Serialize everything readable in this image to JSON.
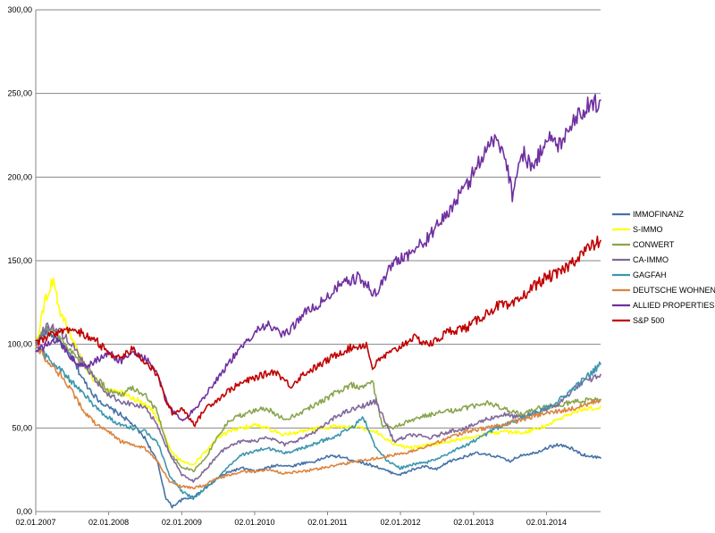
{
  "chart_data": {
    "type": "line",
    "title": "",
    "xlabel": "",
    "ylabel": "",
    "ylim": [
      0,
      300
    ],
    "xlim": [
      "2007-01-02",
      "2014-09-30"
    ],
    "grid": "horizontal",
    "legend_position": "right",
    "y_ticks": [
      "0,00",
      "50,00",
      "100,00",
      "150,00",
      "200,00",
      "250,00",
      "300,00"
    ],
    "x_ticks": [
      {
        "date": "2007-01-02",
        "label": "02.01.2007"
      },
      {
        "date": "2008-01-02",
        "label": "02.01.2008"
      },
      {
        "date": "2009-01-02",
        "label": "02.01.2009"
      },
      {
        "date": "2010-01-02",
        "label": "02.01.2010"
      },
      {
        "date": "2011-01-02",
        "label": "02.01.2011"
      },
      {
        "date": "2012-01-02",
        "label": "02.01.2012"
      },
      {
        "date": "2013-01-02",
        "label": "02.01.2013"
      },
      {
        "date": "2014-01-02",
        "label": "02.01.2014"
      }
    ],
    "series": [
      {
        "name": "IMMOFINANZ",
        "color": "#4572A7",
        "x": [
          "2007-01-02",
          "2007-03-01",
          "2007-05-01",
          "2007-07-01",
          "2007-09-01",
          "2007-11-01",
          "2008-01-02",
          "2008-03-01",
          "2008-05-01",
          "2008-07-01",
          "2008-09-01",
          "2008-10-15",
          "2008-11-15",
          "2009-01-02",
          "2009-03-01",
          "2009-05-01",
          "2009-07-01",
          "2009-09-01",
          "2009-11-01",
          "2010-01-02",
          "2010-03-01",
          "2010-05-01",
          "2010-07-01",
          "2010-09-01",
          "2010-11-01",
          "2011-01-02",
          "2011-03-01",
          "2011-05-01",
          "2011-07-01",
          "2011-09-01",
          "2011-11-01",
          "2012-01-02",
          "2012-03-01",
          "2012-05-01",
          "2012-07-01",
          "2012-09-01",
          "2012-11-01",
          "2013-01-02",
          "2013-03-01",
          "2013-05-01",
          "2013-07-01",
          "2013-09-01",
          "2013-11-01",
          "2014-01-02",
          "2014-03-01",
          "2014-05-01",
          "2014-07-01",
          "2014-09-30"
        ],
        "values": [
          100,
          108,
          102,
          92,
          78,
          68,
          62,
          58,
          52,
          44,
          30,
          8,
          3,
          7,
          9,
          14,
          20,
          24,
          26,
          24,
          26,
          28,
          27,
          29,
          30,
          33,
          33,
          31,
          29,
          27,
          24,
          22,
          25,
          27,
          25,
          30,
          32,
          35,
          34,
          33,
          30,
          34,
          35,
          38,
          40,
          38,
          34,
          32
        ]
      },
      {
        "name": "S-IMMO",
        "color": "#FFFF00",
        "x": [
          "2007-01-02",
          "2007-02-15",
          "2007-04-01",
          "2007-05-01",
          "2007-06-01",
          "2007-08-01",
          "2007-10-01",
          "2007-12-01",
          "2008-02-01",
          "2008-04-01",
          "2008-06-01",
          "2008-08-01",
          "2008-10-01",
          "2008-11-15",
          "2009-01-02",
          "2009-03-01",
          "2009-05-01",
          "2009-07-01",
          "2009-09-01",
          "2009-11-01",
          "2010-01-02",
          "2010-03-01",
          "2010-06-01",
          "2010-09-01",
          "2010-12-01",
          "2011-03-01",
          "2011-06-01",
          "2011-09-01",
          "2011-12-01",
          "2012-03-01",
          "2012-06-01",
          "2012-09-01",
          "2012-12-01",
          "2013-03-01",
          "2013-06-01",
          "2013-09-01",
          "2013-12-01",
          "2014-03-01",
          "2014-06-01",
          "2014-09-30"
        ],
        "values": [
          100,
          125,
          140,
          120,
          112,
          95,
          82,
          74,
          72,
          70,
          66,
          62,
          48,
          35,
          30,
          28,
          36,
          44,
          48,
          50,
          52,
          50,
          46,
          48,
          50,
          51,
          50,
          48,
          40,
          38,
          40,
          42,
          44,
          46,
          48,
          47,
          50,
          55,
          60,
          63
        ]
      },
      {
        "name": "CONWERT",
        "color": "#89A54E",
        "x": [
          "2007-01-02",
          "2007-03-01",
          "2007-05-01",
          "2007-07-01",
          "2007-09-01",
          "2007-11-01",
          "2008-01-02",
          "2008-03-01",
          "2008-05-01",
          "2008-07-01",
          "2008-09-01",
          "2008-11-01",
          "2009-01-02",
          "2009-03-01",
          "2009-05-01",
          "2009-07-01",
          "2009-09-01",
          "2009-11-01",
          "2010-01-02",
          "2010-03-01",
          "2010-06-01",
          "2010-09-01",
          "2010-12-01",
          "2011-03-01",
          "2011-05-01",
          "2011-07-01",
          "2011-08-15",
          "2011-10-01",
          "2011-12-01",
          "2012-03-01",
          "2012-06-01",
          "2012-09-01",
          "2012-12-01",
          "2013-03-01",
          "2013-06-01",
          "2013-09-01",
          "2013-12-01",
          "2014-03-01",
          "2014-06-01",
          "2014-09-30"
        ],
        "values": [
          100,
          110,
          105,
          95,
          88,
          80,
          72,
          70,
          74,
          70,
          60,
          35,
          27,
          24,
          32,
          45,
          55,
          58,
          60,
          62,
          55,
          60,
          66,
          72,
          76,
          74,
          78,
          52,
          50,
          55,
          58,
          60,
          62,
          65,
          62,
          58,
          62,
          64,
          66,
          67
        ]
      },
      {
        "name": "CA-IMMO",
        "color": "#80699B",
        "x": [
          "2007-01-02",
          "2007-03-01",
          "2007-05-01",
          "2007-07-01",
          "2007-09-01",
          "2007-11-01",
          "2008-01-02",
          "2008-03-01",
          "2008-05-01",
          "2008-07-01",
          "2008-09-01",
          "2008-11-01",
          "2009-01-02",
          "2009-03-01",
          "2009-05-01",
          "2009-07-01",
          "2009-09-01",
          "2009-11-01",
          "2010-01-02",
          "2010-03-01",
          "2010-06-01",
          "2010-09-01",
          "2010-12-01",
          "2011-03-01",
          "2011-06-01",
          "2011-09-01",
          "2011-12-01",
          "2012-03-01",
          "2012-06-01",
          "2012-09-01",
          "2012-12-01",
          "2013-03-01",
          "2013-06-01",
          "2013-09-01",
          "2013-12-01",
          "2014-03-01",
          "2014-06-01",
          "2014-09-30"
        ],
        "values": [
          100,
          112,
          108,
          100,
          88,
          78,
          70,
          66,
          64,
          62,
          52,
          35,
          22,
          18,
          25,
          34,
          40,
          42,
          42,
          45,
          40,
          44,
          50,
          58,
          62,
          66,
          42,
          46,
          44,
          48,
          50,
          55,
          58,
          56,
          60,
          64,
          75,
          82
        ]
      },
      {
        "name": "GAGFAH",
        "color": "#3D96AE",
        "x": [
          "2007-01-02",
          "2007-03-01",
          "2007-05-01",
          "2007-07-01",
          "2007-09-01",
          "2007-11-01",
          "2008-01-02",
          "2008-03-01",
          "2008-05-01",
          "2008-07-01",
          "2008-09-01",
          "2008-11-01",
          "2009-01-02",
          "2009-03-01",
          "2009-05-01",
          "2009-07-01",
          "2009-09-01",
          "2009-11-01",
          "2010-01-02",
          "2010-03-01",
          "2010-06-01",
          "2010-09-01",
          "2010-12-01",
          "2011-03-01",
          "2011-05-01",
          "2011-07-01",
          "2011-09-01",
          "2011-11-01",
          "2012-01-02",
          "2012-03-01",
          "2012-06-01",
          "2012-09-01",
          "2012-12-01",
          "2013-03-01",
          "2013-06-01",
          "2013-09-01",
          "2013-12-01",
          "2014-03-01",
          "2014-06-01",
          "2014-09-30"
        ],
        "values": [
          100,
          92,
          85,
          78,
          70,
          62,
          56,
          52,
          50,
          48,
          42,
          22,
          12,
          8,
          14,
          20,
          28,
          34,
          36,
          38,
          35,
          38,
          42,
          46,
          50,
          56,
          38,
          30,
          26,
          28,
          30,
          35,
          40,
          46,
          52,
          56,
          60,
          66,
          75,
          88
        ]
      },
      {
        "name": "DEUTSCHE WOHNEN",
        "color": "#DB843D",
        "x": [
          "2007-01-02",
          "2007-03-01",
          "2007-05-01",
          "2007-07-01",
          "2007-09-01",
          "2007-11-01",
          "2008-01-02",
          "2008-03-01",
          "2008-05-01",
          "2008-07-01",
          "2008-09-01",
          "2008-11-01",
          "2009-01-02",
          "2009-03-01",
          "2009-05-01",
          "2009-07-01",
          "2009-09-01",
          "2009-11-01",
          "2010-01-02",
          "2010-03-01",
          "2010-06-01",
          "2010-09-01",
          "2010-12-01",
          "2011-03-01",
          "2011-06-01",
          "2011-09-01",
          "2011-12-01",
          "2012-03-01",
          "2012-06-01",
          "2012-09-01",
          "2012-12-01",
          "2013-03-01",
          "2013-06-01",
          "2013-09-01",
          "2013-12-01",
          "2014-03-01",
          "2014-06-01",
          "2014-09-30"
        ],
        "values": [
          100,
          90,
          82,
          72,
          60,
          52,
          48,
          42,
          40,
          38,
          30,
          18,
          15,
          14,
          16,
          20,
          22,
          24,
          24,
          25,
          23,
          24,
          26,
          28,
          30,
          32,
          34,
          36,
          40,
          44,
          48,
          50,
          52,
          55,
          58,
          60,
          62,
          67
        ]
      },
      {
        "name": "ALLIED PROPERTIES",
        "color": "#7030A0",
        "x": [
          "2007-01-02",
          "2007-03-01",
          "2007-05-01",
          "2007-07-01",
          "2007-09-01",
          "2007-11-01",
          "2008-01-02",
          "2008-03-01",
          "2008-05-01",
          "2008-07-01",
          "2008-09-01",
          "2008-11-01",
          "2009-01-02",
          "2009-03-01",
          "2009-05-01",
          "2009-07-01",
          "2009-09-01",
          "2009-11-01",
          "2010-01-02",
          "2010-03-01",
          "2010-06-01",
          "2010-09-01",
          "2010-12-01",
          "2011-03-01",
          "2011-06-01",
          "2011-09-01",
          "2011-12-01",
          "2012-03-01",
          "2012-06-01",
          "2012-09-01",
          "2012-12-01",
          "2013-02-01",
          "2013-04-01",
          "2013-06-01",
          "2013-07-15",
          "2013-09-01",
          "2013-11-01",
          "2014-01-02",
          "2014-03-01",
          "2014-05-01",
          "2014-07-01",
          "2014-09-30"
        ],
        "values": [
          95,
          100,
          102,
          92,
          86,
          90,
          95,
          90,
          95,
          92,
          82,
          62,
          55,
          60,
          70,
          80,
          90,
          98,
          108,
          112,
          105,
          118,
          125,
          135,
          140,
          130,
          150,
          155,
          165,
          180,
          195,
          210,
          222,
          218,
          190,
          215,
          205,
          225,
          218,
          232,
          240,
          246
        ]
      },
      {
        "name": "S&P 500",
        "color": "#C00000",
        "x": [
          "2007-01-02",
          "2007-03-01",
          "2007-05-01",
          "2007-07-01",
          "2007-09-01",
          "2007-11-01",
          "2008-01-02",
          "2008-03-01",
          "2008-05-01",
          "2008-07-01",
          "2008-09-01",
          "2008-10-15",
          "2008-11-20",
          "2009-01-02",
          "2009-03-09",
          "2009-05-01",
          "2009-07-01",
          "2009-09-01",
          "2009-11-01",
          "2010-01-02",
          "2010-04-15",
          "2010-07-01",
          "2010-09-01",
          "2010-12-01",
          "2011-03-01",
          "2011-05-01",
          "2011-07-15",
          "2011-08-15",
          "2011-10-01",
          "2011-12-01",
          "2012-03-01",
          "2012-06-01",
          "2012-09-01",
          "2012-12-01",
          "2013-03-01",
          "2013-05-15",
          "2013-07-01",
          "2013-09-01",
          "2013-11-01",
          "2014-01-02",
          "2014-03-01",
          "2014-05-01",
          "2014-07-01",
          "2014-09-30"
        ],
        "values": [
          100,
          104,
          108,
          110,
          106,
          102,
          95,
          92,
          97,
          90,
          82,
          66,
          58,
          62,
          52,
          62,
          67,
          73,
          77,
          80,
          84,
          75,
          82,
          88,
          95,
          98,
          100,
          86,
          92,
          96,
          104,
          100,
          108,
          110,
          118,
          124,
          122,
          128,
          135,
          140,
          142,
          148,
          155,
          162
        ]
      }
    ]
  }
}
